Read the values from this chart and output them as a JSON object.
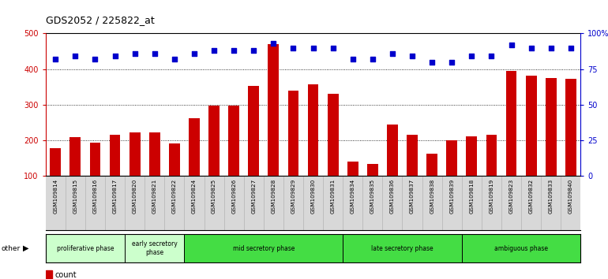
{
  "title": "GDS2052 / 225822_at",
  "samples": [
    "GSM109814",
    "GSM109815",
    "GSM109816",
    "GSM109817",
    "GSM109820",
    "GSM109821",
    "GSM109822",
    "GSM109824",
    "GSM109825",
    "GSM109826",
    "GSM109827",
    "GSM109828",
    "GSM109829",
    "GSM109830",
    "GSM109831",
    "GSM109834",
    "GSM109835",
    "GSM109836",
    "GSM109837",
    "GSM109838",
    "GSM109839",
    "GSM109818",
    "GSM109819",
    "GSM109823",
    "GSM109832",
    "GSM109833",
    "GSM109840"
  ],
  "counts": [
    178,
    208,
    192,
    215,
    221,
    223,
    190,
    262,
    298,
    298,
    352,
    470,
    340,
    358,
    330,
    140,
    133,
    243,
    215,
    161,
    200,
    210,
    215,
    395,
    382,
    375,
    372
  ],
  "percentiles": [
    82,
    84,
    82,
    84,
    86,
    86,
    82,
    86,
    88,
    88,
    88,
    93,
    90,
    90,
    90,
    82,
    82,
    86,
    84,
    80,
    80,
    84,
    84,
    92,
    90,
    90,
    90
  ],
  "bar_color": "#cc0000",
  "dot_color": "#0000cc",
  "phase_groups": [
    {
      "label": "proliferative phase",
      "start": 0,
      "end": 4,
      "color": "#ccffcc"
    },
    {
      "label": "early secretory\nphase",
      "start": 4,
      "end": 7,
      "color": "#ccffcc"
    },
    {
      "label": "mid secretory phase",
      "start": 7,
      "end": 15,
      "color": "#44dd44"
    },
    {
      "label": "late secretory phase",
      "start": 15,
      "end": 21,
      "color": "#44dd44"
    },
    {
      "label": "ambiguous phase",
      "start": 21,
      "end": 27,
      "color": "#44dd44"
    }
  ],
  "ylim_left": [
    100,
    500
  ],
  "ylim_right": [
    0,
    100
  ],
  "yticks_left": [
    100,
    200,
    300,
    400,
    500
  ],
  "yticks_right": [
    0,
    25,
    50,
    75,
    100
  ],
  "ytick_labels_right": [
    "0",
    "25",
    "50",
    "75",
    "100%"
  ],
  "left_axis_color": "#cc0000",
  "right_axis_color": "#0000cc",
  "bg_color": "#ffffff",
  "tick_bg_color": "#d8d8d8"
}
